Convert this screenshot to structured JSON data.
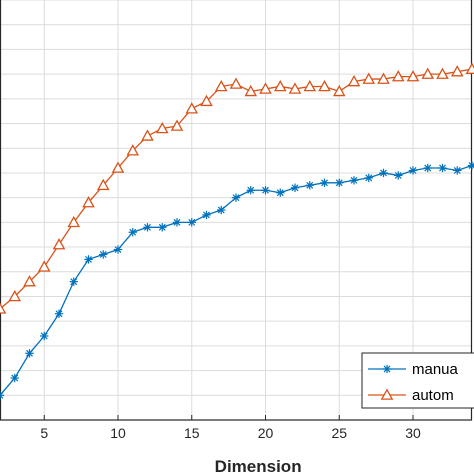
{
  "chart_data": {
    "type": "line",
    "xlabel": "Dimension",
    "ylabel": "",
    "xlim": [
      2,
      34
    ],
    "ylim": [
      0.72,
      0.89
    ],
    "x_ticks": [
      5,
      10,
      15,
      20,
      25,
      30
    ],
    "grid": true,
    "legend_position": "bottom-right",
    "x": [
      2,
      3,
      4,
      5,
      6,
      7,
      8,
      9,
      10,
      11,
      12,
      13,
      14,
      15,
      16,
      17,
      18,
      19,
      20,
      21,
      22,
      23,
      24,
      25,
      26,
      27,
      28,
      29,
      30,
      31,
      32,
      33,
      34
    ],
    "series": [
      {
        "name": "manua",
        "color": "#0072BD",
        "marker": "asterisk",
        "values": [
          0.73,
          0.737,
          0.747,
          0.754,
          0.763,
          0.776,
          0.785,
          0.787,
          0.789,
          0.796,
          0.798,
          0.798,
          0.8,
          0.8,
          0.803,
          0.805,
          0.81,
          0.813,
          0.813,
          0.812,
          0.814,
          0.815,
          0.816,
          0.816,
          0.817,
          0.818,
          0.82,
          0.819,
          0.821,
          0.822,
          0.822,
          0.821,
          0.823
        ]
      },
      {
        "name": "autom",
        "color": "#D95319",
        "marker": "triangle",
        "values": [
          0.765,
          0.77,
          0.776,
          0.782,
          0.791,
          0.8,
          0.808,
          0.815,
          0.822,
          0.829,
          0.835,
          0.838,
          0.839,
          0.846,
          0.849,
          0.855,
          0.856,
          0.853,
          0.854,
          0.855,
          0.854,
          0.855,
          0.855,
          0.853,
          0.857,
          0.858,
          0.858,
          0.859,
          0.859,
          0.86,
          0.86,
          0.861,
          0.862
        ]
      }
    ]
  }
}
